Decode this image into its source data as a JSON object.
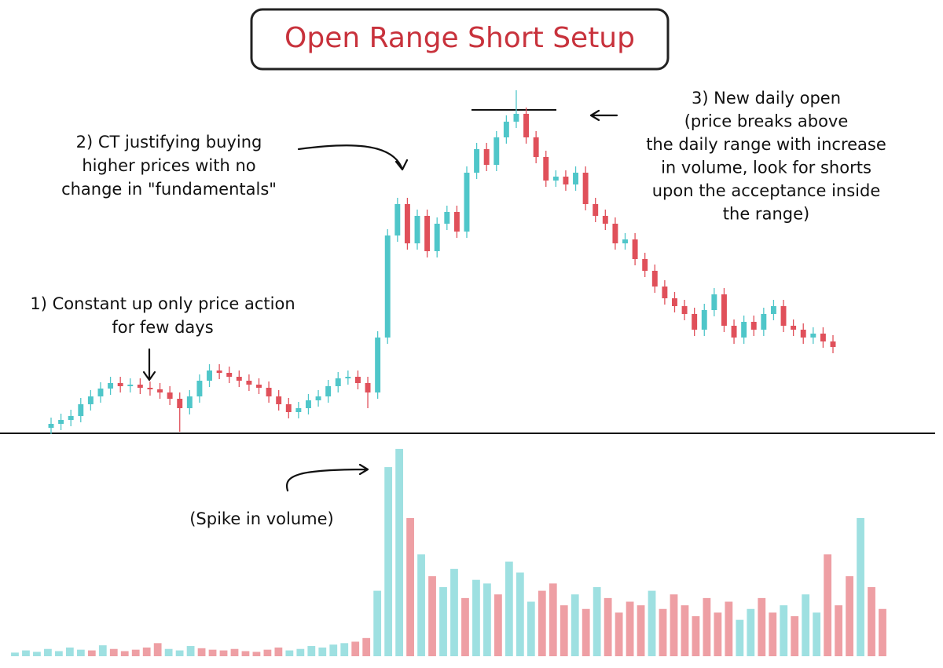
{
  "chart_data": {
    "type": "candlestick",
    "title": "Open Range Short Setup",
    "annotations": [
      {
        "lines": [
          "1) Constant up only price action",
          "for few days"
        ]
      },
      {
        "lines": [
          "2) CT justifying buying",
          "higher prices with no",
          "change in \"fundamentals\""
        ]
      },
      {
        "lines": [
          "3) New daily open",
          "(price breaks above",
          "the daily range with increase",
          "in volume, look for shorts",
          "upon the acceptance inside",
          "the range)"
        ]
      },
      {
        "lines": [
          "(Spike in volume)"
        ]
      }
    ],
    "up_color": "#4fc6c9",
    "down_color": "#e0505a",
    "ylim": [
      0,
      460
    ],
    "open": [
      15,
      20,
      25,
      30,
      45,
      55,
      65,
      72,
      68,
      70,
      66,
      64,
      60,
      52,
      40,
      55,
      75,
      88,
      85,
      80,
      75,
      70,
      66,
      55,
      45,
      35,
      40,
      50,
      55,
      68,
      78,
      80,
      72,
      60,
      130,
      260,
      300,
      250,
      285,
      240,
      275,
      290,
      265,
      340,
      370,
      350,
      385,
      405,
      415,
      385,
      360,
      330,
      335,
      325,
      340,
      300,
      285,
      275,
      250,
      255,
      230,
      215,
      195,
      180,
      170,
      160,
      140,
      165,
      185,
      145,
      130,
      150,
      140,
      160,
      170,
      145,
      140,
      130,
      135,
      125
    ],
    "high": [
      28,
      33,
      38,
      53,
      63,
      73,
      80,
      80,
      78,
      78,
      74,
      72,
      68,
      60,
      63,
      83,
      96,
      96,
      93,
      88,
      83,
      78,
      74,
      63,
      53,
      48,
      58,
      63,
      76,
      86,
      88,
      88,
      80,
      138,
      268,
      308,
      308,
      293,
      293,
      283,
      298,
      298,
      348,
      378,
      378,
      393,
      413,
      445,
      423,
      393,
      368,
      343,
      343,
      348,
      348,
      308,
      293,
      283,
      263,
      263,
      238,
      223,
      203,
      188,
      178,
      168,
      173,
      193,
      193,
      153,
      158,
      158,
      168,
      178,
      178,
      153,
      148,
      143,
      143,
      133
    ],
    "low": [
      7,
      12,
      17,
      22,
      37,
      47,
      57,
      60,
      60,
      58,
      56,
      52,
      44,
      10,
      32,
      47,
      67,
      77,
      72,
      67,
      62,
      58,
      47,
      37,
      27,
      27,
      32,
      42,
      47,
      60,
      70,
      64,
      40,
      52,
      122,
      252,
      242,
      242,
      232,
      232,
      267,
      257,
      257,
      332,
      342,
      342,
      377,
      397,
      377,
      352,
      322,
      322,
      317,
      317,
      292,
      277,
      267,
      242,
      242,
      222,
      207,
      187,
      172,
      162,
      152,
      132,
      132,
      157,
      137,
      122,
      122,
      132,
      132,
      152,
      137,
      132,
      122,
      122,
      117,
      110
    ],
    "close": [
      20,
      25,
      30,
      45,
      55,
      65,
      72,
      68,
      70,
      66,
      64,
      60,
      52,
      40,
      55,
      75,
      88,
      85,
      80,
      75,
      70,
      66,
      55,
      45,
      35,
      40,
      50,
      55,
      68,
      78,
      80,
      72,
      60,
      130,
      260,
      300,
      250,
      285,
      240,
      275,
      290,
      265,
      340,
      370,
      350,
      385,
      405,
      415,
      385,
      360,
      330,
      335,
      325,
      340,
      300,
      285,
      275,
      250,
      255,
      230,
      215,
      195,
      180,
      170,
      160,
      140,
      165,
      185,
      145,
      130,
      150,
      140,
      160,
      170,
      145,
      140,
      130,
      135,
      125,
      118
    ],
    "volume": {
      "ylim": [
        0,
        300
      ],
      "values": [
        5,
        8,
        6,
        10,
        7,
        12,
        9,
        8,
        15,
        10,
        7,
        9,
        12,
        18,
        10,
        8,
        14,
        11,
        9,
        8,
        10,
        7,
        6,
        9,
        12,
        8,
        10,
        14,
        12,
        16,
        18,
        20,
        25,
        90,
        260,
        285,
        190,
        140,
        110,
        95,
        120,
        80,
        105,
        100,
        85,
        130,
        115,
        75,
        90,
        100,
        70,
        85,
        65,
        95,
        80,
        60,
        75,
        70,
        90,
        65,
        85,
        70,
        55,
        80,
        60,
        75,
        50,
        65,
        80,
        60,
        70,
        55,
        85,
        60,
        140,
        70,
        110,
        190,
        95,
        65
      ]
    }
  }
}
